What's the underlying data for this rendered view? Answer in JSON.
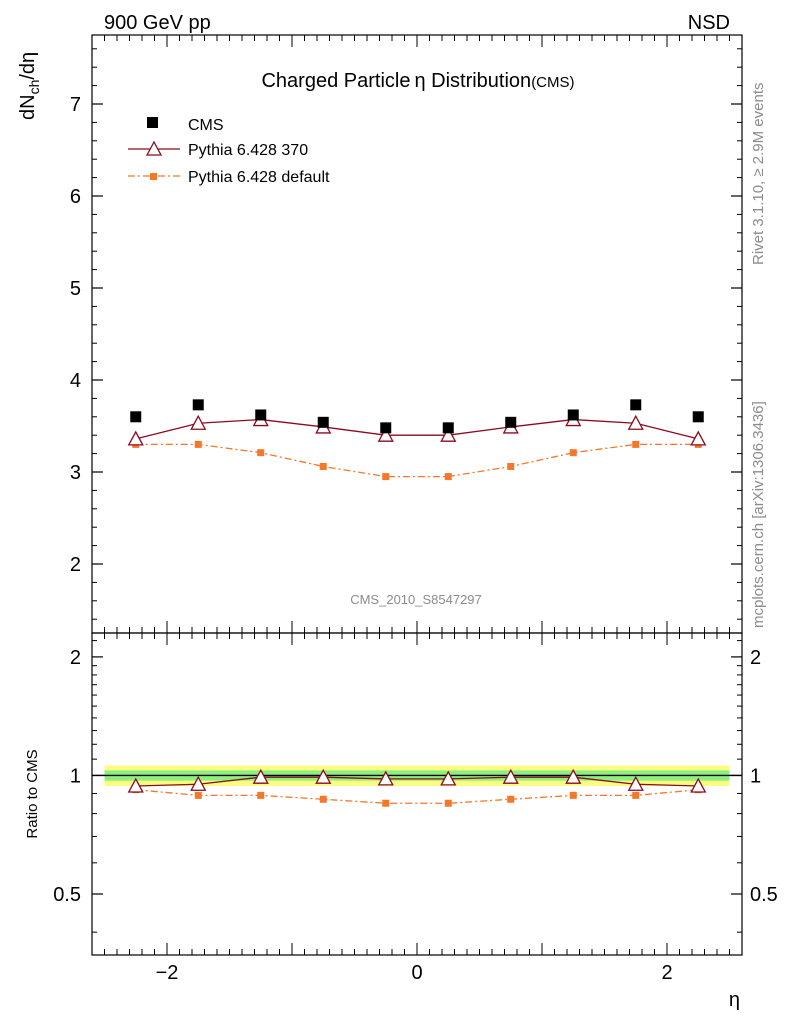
{
  "header": {
    "left_label": "900 GeV pp",
    "right_label": "NSD"
  },
  "side_text": {
    "rivet": "Rivet 3.1.10, ≥ 2.9M events",
    "mcplots": "mcplots.cern.ch [arXiv:1306.3436]"
  },
  "watermark": "CMS_2010_S8547297",
  "chart_data": [
    {
      "type": "scatter",
      "title_main": "Charged Particle",
      "title_eta": "η",
      "title_rest": " Distribution",
      "title_small": "(CMS)",
      "ylabel_main": "dN",
      "ylabel_sub": "ch",
      "ylabel_rest": "/dη",
      "xlim": [
        -2.6,
        2.6
      ],
      "ylim": [
        1.25,
        7.75
      ],
      "yticks": [
        2,
        3,
        4,
        5,
        6,
        7
      ],
      "ytick_labels": [
        "2",
        "3",
        "4",
        "5",
        "6",
        "7"
      ],
      "x": [
        -2.25,
        -1.75,
        -1.25,
        -0.75,
        -0.25,
        0.25,
        0.75,
        1.25,
        1.75,
        2.25
      ],
      "series": [
        {
          "name": "CMS",
          "color": "#000000",
          "marker": "square",
          "values": [
            3.6,
            3.73,
            3.62,
            3.54,
            3.48,
            3.48,
            3.54,
            3.62,
            3.73,
            3.6
          ]
        },
        {
          "name": "Pythia 6.428 370",
          "color": "#8b0a1e",
          "marker": "triangle-open",
          "line": "solid",
          "values": [
            3.36,
            3.53,
            3.57,
            3.49,
            3.4,
            3.4,
            3.49,
            3.57,
            3.53,
            3.36
          ]
        },
        {
          "name": "Pythia 6.428 default",
          "color": "#f5772a",
          "marker": "square-small",
          "line": "dashdot",
          "values": [
            3.3,
            3.3,
            3.21,
            3.06,
            2.95,
            2.95,
            3.06,
            3.21,
            3.3,
            3.3
          ]
        }
      ]
    },
    {
      "type": "line",
      "ylabel": "Ratio to CMS",
      "xlabel": "η",
      "xlim": [
        -2.6,
        2.6
      ],
      "ylim": [
        0.35,
        2.3
      ],
      "log_y": true,
      "xticks": [
        -2,
        0,
        2
      ],
      "xtick_labels": [
        "−2",
        "0",
        "2"
      ],
      "yticks": [
        0.5,
        1,
        2
      ],
      "ytick_labels": [
        "0.5",
        "1",
        "2"
      ],
      "x": [
        -2.25,
        -1.75,
        -1.25,
        -0.75,
        -0.25,
        0.25,
        0.75,
        1.25,
        1.75,
        2.25
      ],
      "band_green_halfwidth": 0.03,
      "band_yellow_halfwidth": 0.06,
      "band_green_color": "#8df07e",
      "band_yellow_color": "#fbfc82",
      "series": [
        {
          "name": "Pythia 6.428 370",
          "color": "#8b0a1e",
          "values": [
            0.94,
            0.95,
            0.99,
            0.99,
            0.98,
            0.98,
            0.99,
            0.99,
            0.95,
            0.94
          ]
        },
        {
          "name": "Pythia 6.428 default",
          "color": "#f5772a",
          "values": [
            0.92,
            0.89,
            0.89,
            0.87,
            0.85,
            0.85,
            0.87,
            0.89,
            0.89,
            0.92
          ]
        }
      ]
    }
  ]
}
